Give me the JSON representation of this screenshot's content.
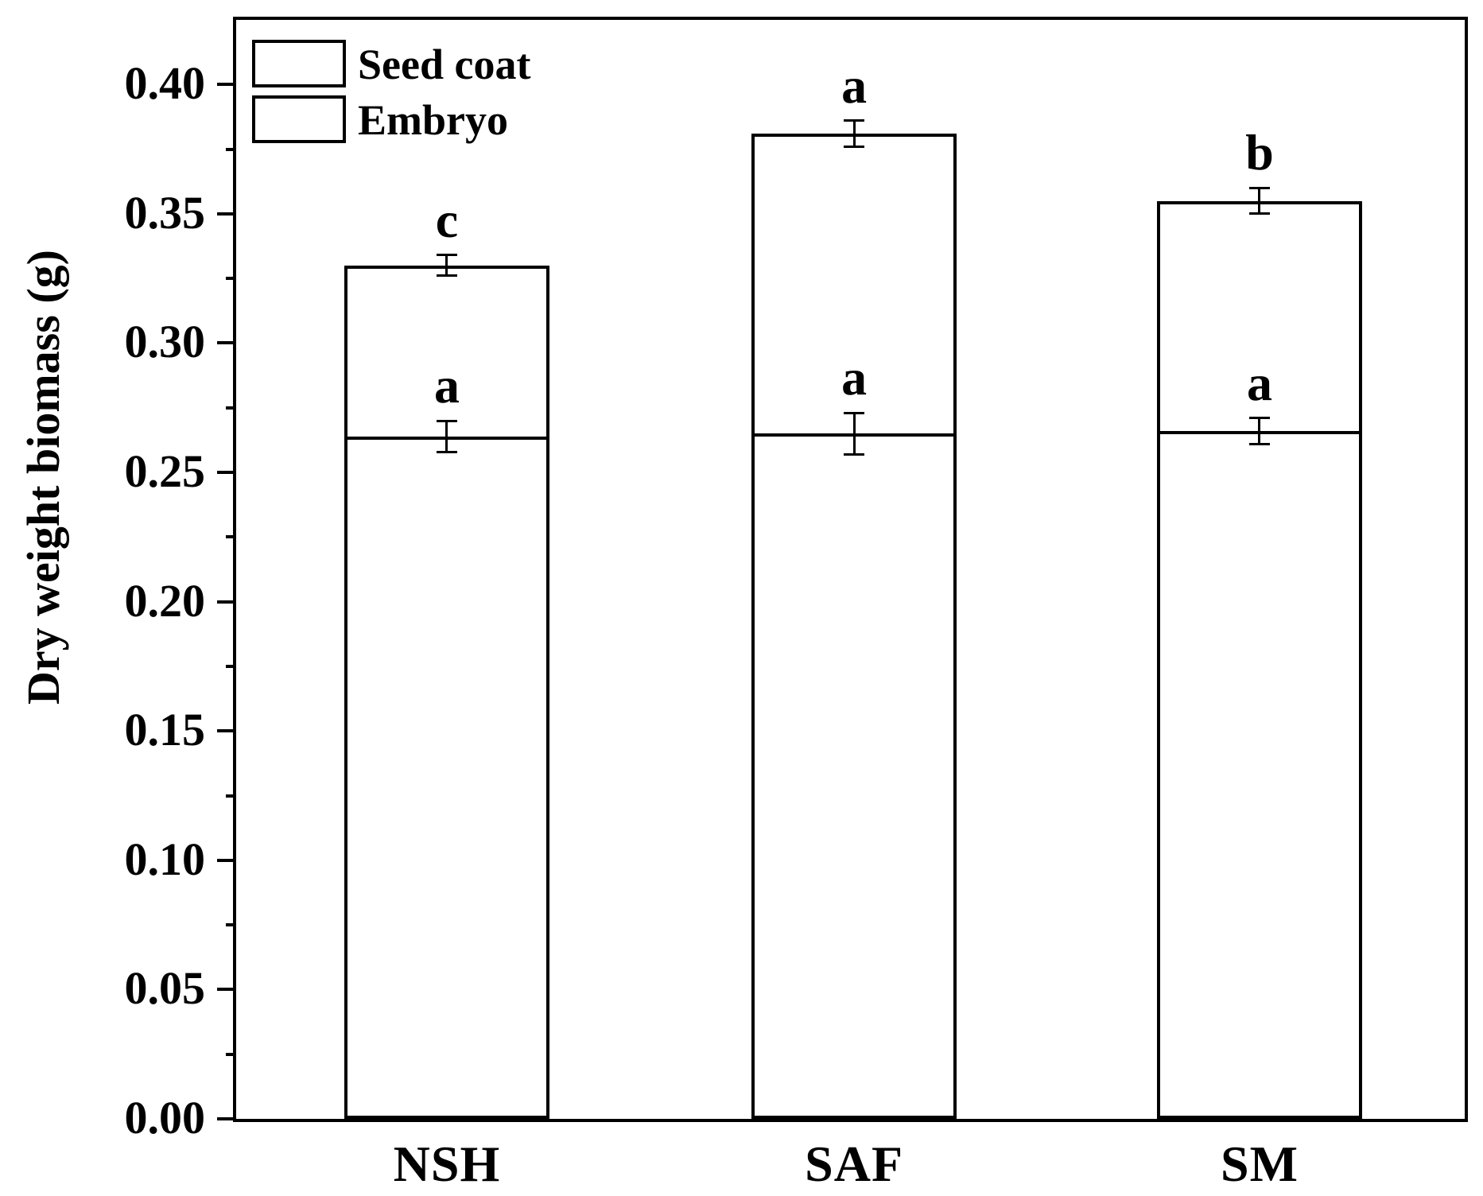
{
  "chart_data": {
    "type": "bar",
    "stacked": true,
    "title": "",
    "xlabel": "",
    "ylabel": "Dry weight biomass (g)",
    "ylim": [
      0,
      0.425
    ],
    "ytick_major_step": 0.05,
    "ytick_minor_step": 0.025,
    "ytick_labels": [
      "0.00",
      "0.05",
      "0.10",
      "0.15",
      "0.20",
      "0.25",
      "0.30",
      "0.35",
      "0.40"
    ],
    "grid": false,
    "legend_position": "top-left-inside",
    "categories": [
      "NSH",
      "SAF",
      "SM"
    ],
    "series": [
      {
        "name": "Embryo",
        "fill": "white",
        "values": [
          0.264,
          0.265,
          0.266
        ],
        "errors": [
          0.006,
          0.008,
          0.005
        ],
        "sig_letters": [
          "a",
          "a",
          "a"
        ]
      },
      {
        "name": "Seed coat",
        "fill": "diagonal-hatch",
        "values": [
          0.066,
          0.116,
          0.089
        ]
      }
    ],
    "totals": {
      "values": [
        0.33,
        0.381,
        0.355
      ],
      "errors": [
        0.004,
        0.005,
        0.005
      ],
      "sig_letters": [
        "c",
        "a",
        "b"
      ]
    },
    "legend": [
      {
        "label": "Seed coat",
        "pattern": "diagonal-hatch"
      },
      {
        "label": "Embryo",
        "pattern": "solid-white"
      }
    ],
    "colors": {
      "foreground": "#000000",
      "background": "#ffffff"
    }
  }
}
